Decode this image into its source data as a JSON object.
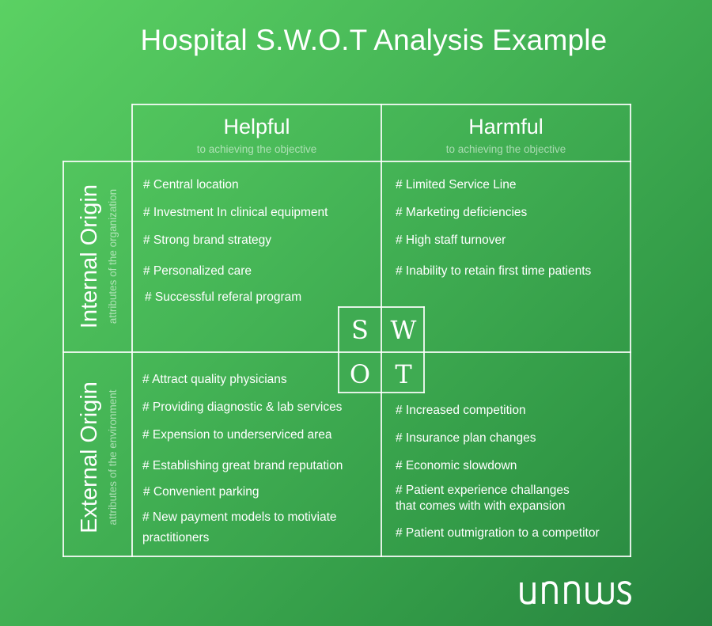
{
  "title": "Hospital S.W.O.T Analysis Example",
  "columns": [
    {
      "label": "Helpful",
      "sub": "to achieving the objective"
    },
    {
      "label": "Harmful",
      "sub": "to achieving the objective"
    }
  ],
  "rows": [
    {
      "label": "Internal Origin",
      "sub": "attributes of the organization"
    },
    {
      "label": "External Origin",
      "sub": "attributes of the environment"
    }
  ],
  "swot": {
    "s": "S",
    "w": "W",
    "o": "O",
    "t": "T"
  },
  "strengths": [
    "# Central location",
    "# Investment In clinical equipment",
    "# Strong brand strategy",
    "# Personalized care",
    "# Successful referal program"
  ],
  "weaknesses": [
    "# Limited Service Line",
    "# Marketing deficiencies",
    "# High staff turnover",
    "# Inability to retain first time patients"
  ],
  "opportunities": [
    "# Attract quality physicians",
    "# Providing diagnostic & lab services",
    "# Expension to underserviced area",
    "# Establishing great brand reputation",
    "# Convenient parking",
    "# New payment models to motiviate",
    "practitioners"
  ],
  "threats": [
    "# Increased competition",
    "# Insurance plan changes",
    "# Economic slowdown",
    "# Patient experience challanges",
    "that comes with with expansion",
    "# Patient outmigration to a competitor"
  ],
  "logo_text": "unnus"
}
